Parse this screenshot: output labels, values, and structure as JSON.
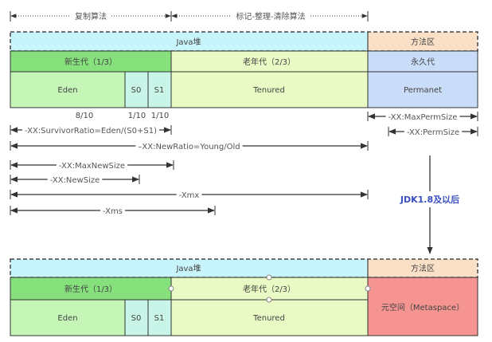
{
  "top_labels": {
    "copy_algo": "复制算法",
    "mark_algo": "标记-整理-清除算法"
  },
  "before": {
    "heap": "Java堆",
    "method_area": "方法区",
    "young": "新生代（1/3）",
    "old": "老年代（2/3）",
    "perm_gen": "永久代",
    "eden": "Eden",
    "s0": "S0",
    "s1": "S1",
    "tenured": "Tenured",
    "permanet": "Permanet"
  },
  "ratios": {
    "eden": "8/10",
    "s0": "1/10",
    "s1": "1/10"
  },
  "params": {
    "max_perm_size": "-XX:MaxPermSize",
    "perm_size": "-XX:PermSize",
    "survivor_ratio": "-XX:SurvivorRatio=Eden/(S0+S1)",
    "new_ratio": "–XX:NewRatio=Young/Old",
    "max_new_size": "-XX:MaxNewSize",
    "new_size": "-XX:NewSize",
    "xmx": "-Xmx",
    "xms": "-Xms"
  },
  "transition": "JDK1.8及以后",
  "after": {
    "heap": "Java堆",
    "method_area": "方法区",
    "young": "新生代（1/3）",
    "old": "老年代（2/3）",
    "eden": "Eden",
    "s0": "S0",
    "s1": "S1",
    "tenured": "Tenured",
    "metaspace": "元空间（Metaspace）"
  },
  "colors": {
    "heap": "#c8f4fb",
    "method_area": "#fbe0c8",
    "young": "#86e07c",
    "eden": "#c6f5b8",
    "survivor": "#c8f5e8",
    "old": "#eafac4",
    "perm": "#c9dcf8",
    "metaspace": "#f59490",
    "jdk_text": "#3a4fc0"
  }
}
